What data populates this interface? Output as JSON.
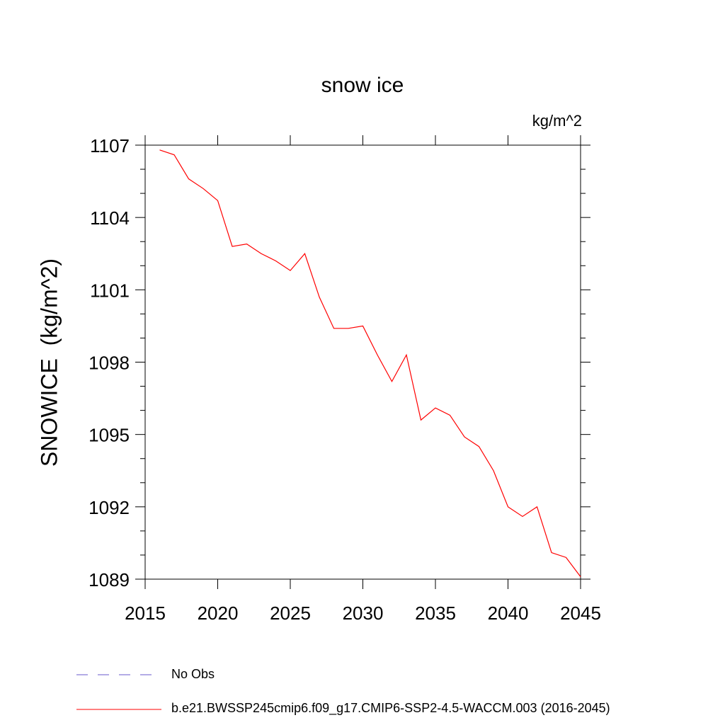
{
  "chart_data": {
    "type": "line",
    "title": "snow ice",
    "units_label": "kg/m^2",
    "ylabel": "SNOWICE  (kg/m^2)",
    "xlabel": "",
    "xlim": [
      2015,
      2045
    ],
    "ylim": [
      1089,
      1107
    ],
    "x_ticks": [
      2015,
      2020,
      2025,
      2030,
      2035,
      2040,
      2045
    ],
    "y_ticks": [
      1089,
      1092,
      1095,
      1098,
      1101,
      1104,
      1107
    ],
    "grid": false,
    "series": [
      {
        "name": "b.e21.BWSSP245cmip6.f09_g17.CMIP6-SSP2-4.5-WACCM.003 (2016-2045)",
        "color": "#ff0000",
        "x": [
          2016,
          2017,
          2018,
          2019,
          2020,
          2021,
          2022,
          2023,
          2024,
          2025,
          2026,
          2027,
          2028,
          2029,
          2030,
          2031,
          2032,
          2033,
          2034,
          2035,
          2036,
          2037,
          2038,
          2039,
          2040,
          2041,
          2042,
          2043,
          2044,
          2045
        ],
        "y": [
          1106.8,
          1106.6,
          1105.6,
          1105.2,
          1104.7,
          1102.8,
          1102.9,
          1102.5,
          1102.2,
          1101.8,
          1102.5,
          1100.7,
          1099.4,
          1099.4,
          1099.5,
          1098.3,
          1097.2,
          1098.3,
          1095.6,
          1096.1,
          1095.8,
          1094.9,
          1094.5,
          1093.5,
          1092.0,
          1091.6,
          1092.0,
          1090.1,
          1089.9,
          1089.1
        ]
      }
    ],
    "legend": [
      {
        "label": "No Obs",
        "color": "#6a5acd",
        "style": "dashed"
      },
      {
        "label": "b.e21.BWSSP245cmip6.f09_g17.CMIP6-SSP2-4.5-WACCM.003 (2016-2045)",
        "color": "#ff0000",
        "style": "solid"
      }
    ],
    "legend_position": "bottom-left"
  }
}
